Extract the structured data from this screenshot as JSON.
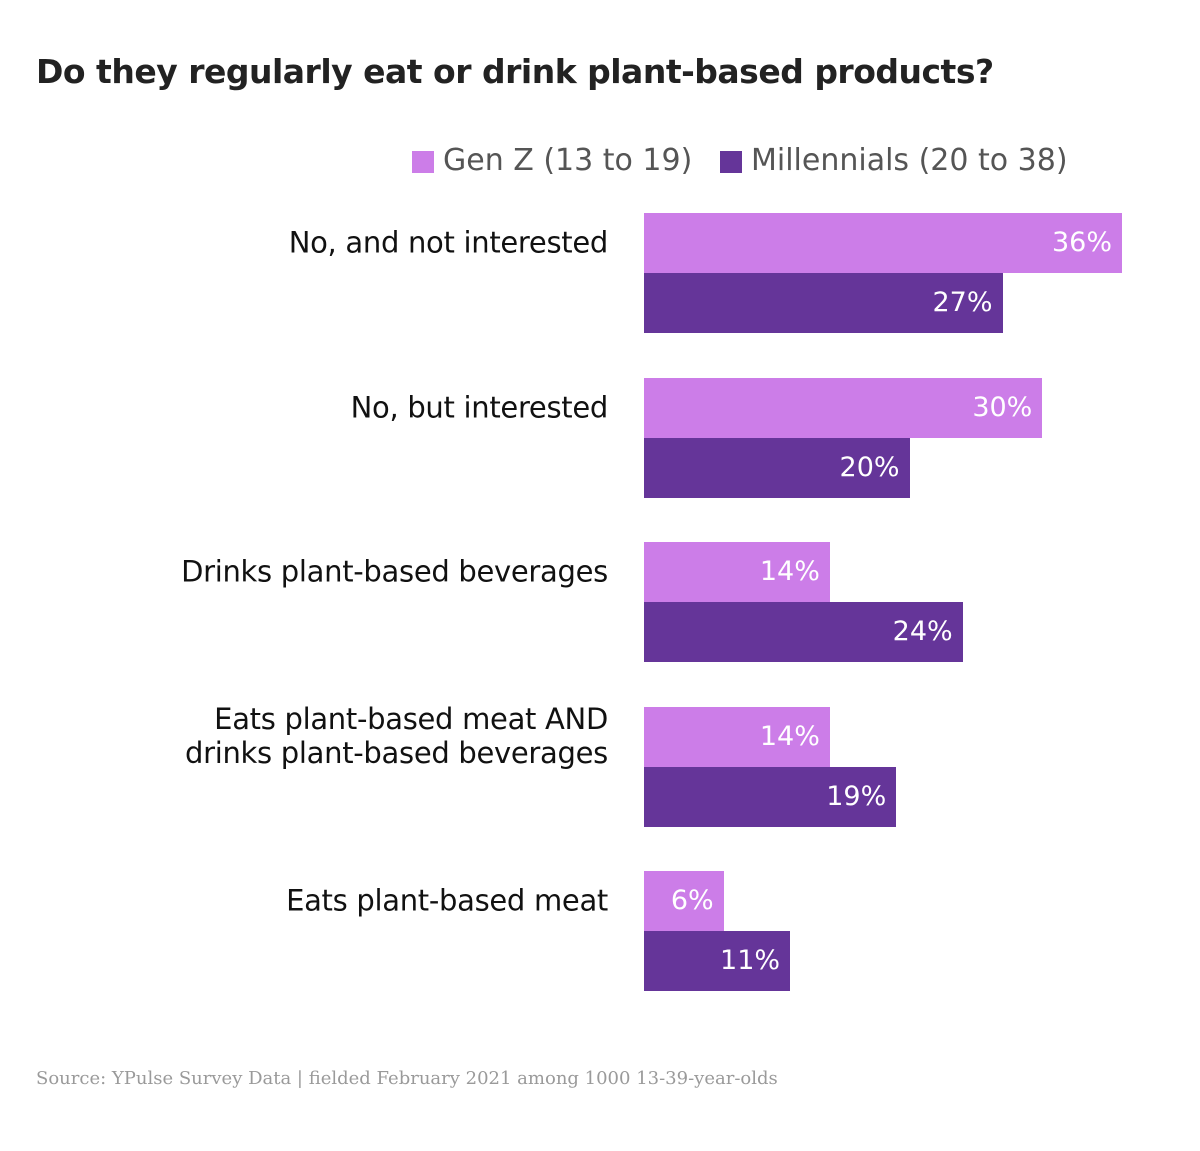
{
  "chart_data": {
    "type": "bar",
    "orientation": "horizontal",
    "title": "Do they regularly eat or drink plant-based products?",
    "categories": [
      "No, and not interested",
      "No, but interested",
      "Drinks plant-based beverages",
      "Eats plant-based meat AND\ndrinks plant-based beverages",
      "Eats plant-based meat"
    ],
    "series": [
      {
        "name": "Gen Z (13 to 19)",
        "color": "#cc7de8",
        "values": [
          36,
          30,
          14,
          14,
          6
        ],
        "value_labels": [
          "36%",
          "30%",
          "14%",
          "14%",
          "6%"
        ]
      },
      {
        "name": "Millennials (20 to 38)",
        "color": "#653599",
        "values": [
          27,
          20,
          24,
          19,
          11
        ],
        "value_labels": [
          "27%",
          "20%",
          "24%",
          "19%",
          "11%"
        ]
      }
    ],
    "source": "Source: YPulse Survey Data | fielded February 2021 among 1000 13-39-year-olds"
  }
}
